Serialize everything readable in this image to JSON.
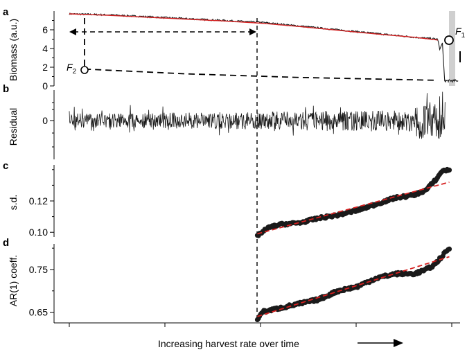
{
  "figure": {
    "panel_letters": [
      "a",
      "b",
      "c",
      "d"
    ],
    "annotations": {
      "f1": "F",
      "f1_sub": "1",
      "f2": "F",
      "f2_sub": "2"
    },
    "colors": {
      "data": "#1a1a1a",
      "fit": "#d62020",
      "threshold_band": "#cfcfcf",
      "sd_points": "#1a1a1a"
    }
  },
  "chart_data": [
    {
      "type": "line",
      "panel": "a",
      "title": "",
      "xlabel": "Increasing harvest rate over time",
      "ylabel": "Biomass (a.u.)",
      "ylim": [
        0,
        8
      ],
      "yticks": [
        0,
        2,
        4,
        6
      ],
      "xlim": [
        0,
        1
      ],
      "series": [
        {
          "name": "",
          "x": [
            0,
            0.1,
            0.2,
            0.3,
            0.4,
            0.5,
            0.6,
            0.7,
            0.8,
            0.9,
            0.96,
            0.98,
            1.0
          ],
          "values": [
            7.7,
            7.6,
            7.4,
            7.2,
            7.0,
            6.8,
            6.4,
            6.0,
            5.6,
            5.2,
            5.0,
            0.5,
            0.6
          ]
        },
        {
          "name": "",
          "x": [
            0,
            0.1,
            0.2,
            0.3,
            0.4,
            0.5,
            0.6,
            0.7,
            0.8,
            0.9,
            0.96
          ],
          "values": [
            7.7,
            7.55,
            7.35,
            7.15,
            6.95,
            6.7,
            6.35,
            5.95,
            5.55,
            5.2,
            4.9
          ]
        },
        {
          "name": "",
          "x": [
            0.04,
            0.3,
            0.6,
            0.96
          ],
          "values": [
            1.8,
            1.3,
            0.9,
            0.6
          ]
        }
      ],
      "notes": [
        "threshold band near x = 0.99",
        "vertical dashed line at x = 0.49",
        "double-headed arrow from x = 0.0 to 0.49"
      ]
    },
    {
      "type": "line",
      "panel": "b",
      "title": "",
      "xlabel": "",
      "ylabel": "Residual",
      "yticks": [
        0
      ],
      "xlim": [
        0,
        1
      ],
      "series": [
        {
          "name": "",
          "x": [
            0,
            1
          ],
          "values": [
            0,
            0
          ]
        }
      ]
    },
    {
      "type": "scatter",
      "panel": "c",
      "title": "",
      "xlabel": "",
      "ylabel": "s.d.",
      "ylim": [
        0.097,
        0.143
      ],
      "yticks": [
        0.1,
        0.12
      ],
      "xlim": [
        0,
        1
      ],
      "series": [
        {
          "name": "",
          "x": [
            0.49,
            0.52,
            0.55,
            0.6,
            0.65,
            0.7,
            0.75,
            0.8,
            0.85,
            0.88,
            0.9,
            0.93,
            0.96,
            0.97,
            0.99
          ],
          "values": [
            0.098,
            0.103,
            0.105,
            0.106,
            0.109,
            0.111,
            0.114,
            0.118,
            0.122,
            0.123,
            0.124,
            0.127,
            0.135,
            0.139,
            0.14
          ]
        },
        {
          "name": "",
          "x": [
            0.49,
            0.99
          ],
          "values": [
            0.099,
            0.132
          ]
        }
      ]
    },
    {
      "type": "scatter",
      "panel": "d",
      "title": "",
      "xlabel": "",
      "ylabel": "AR(1) coeff.",
      "ylim": [
        0.625,
        0.81
      ],
      "yticks": [
        0.65,
        0.75
      ],
      "xlim": [
        0,
        1
      ],
      "series": [
        {
          "name": "",
          "x": [
            0.49,
            0.5,
            0.55,
            0.6,
            0.65,
            0.7,
            0.75,
            0.8,
            0.85,
            0.9,
            0.93,
            0.95,
            0.97,
            0.99
          ],
          "values": [
            0.63,
            0.65,
            0.66,
            0.67,
            0.68,
            0.7,
            0.71,
            0.73,
            0.74,
            0.74,
            0.75,
            0.76,
            0.78,
            0.8
          ]
        },
        {
          "name": "",
          "x": [
            0.49,
            0.99
          ],
          "values": [
            0.64,
            0.78
          ]
        }
      ]
    }
  ]
}
